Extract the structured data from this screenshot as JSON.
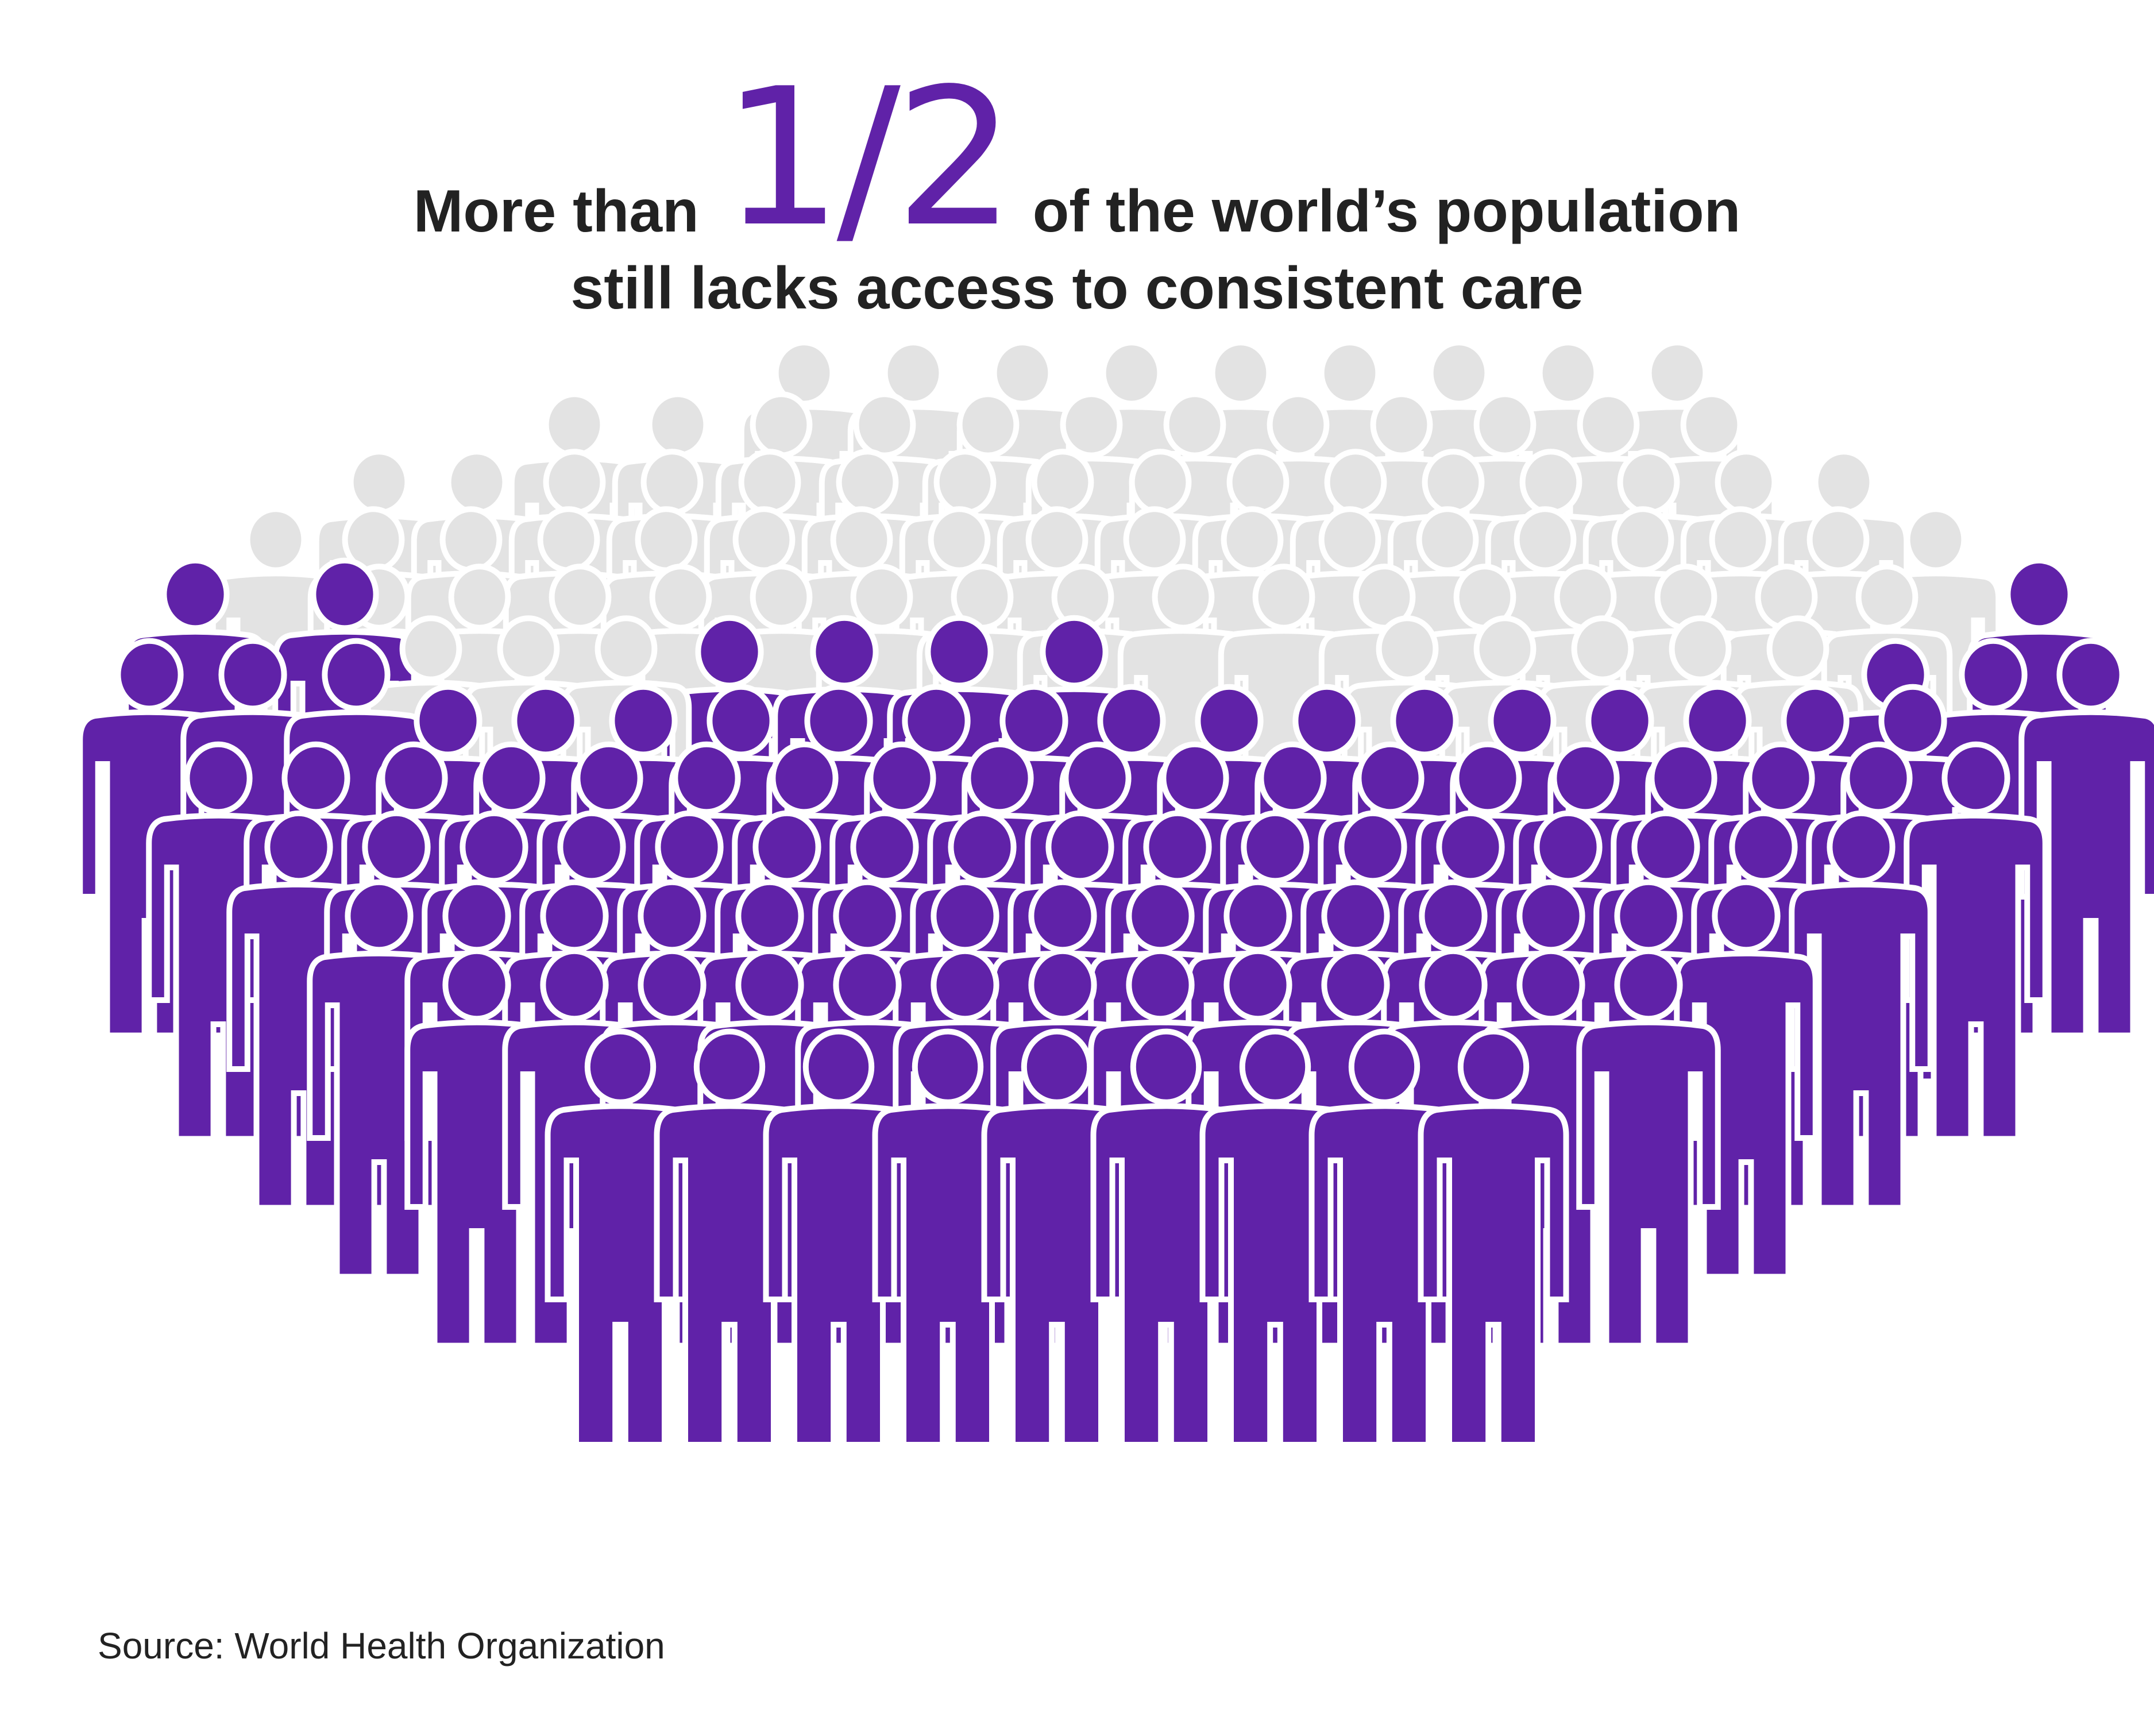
{
  "headline": {
    "lead": "More than",
    "fraction": "1/2",
    "tail": "of the world’s population",
    "line2": "still lacks access to consistent care"
  },
  "source": "Source: World Health Organization",
  "colors": {
    "highlight": "#6022a8",
    "muted": "#e3e3e3",
    "outline": "#ffffff",
    "text": "#222222"
  },
  "stat": {
    "share_lacking_care": 0.5
  }
}
